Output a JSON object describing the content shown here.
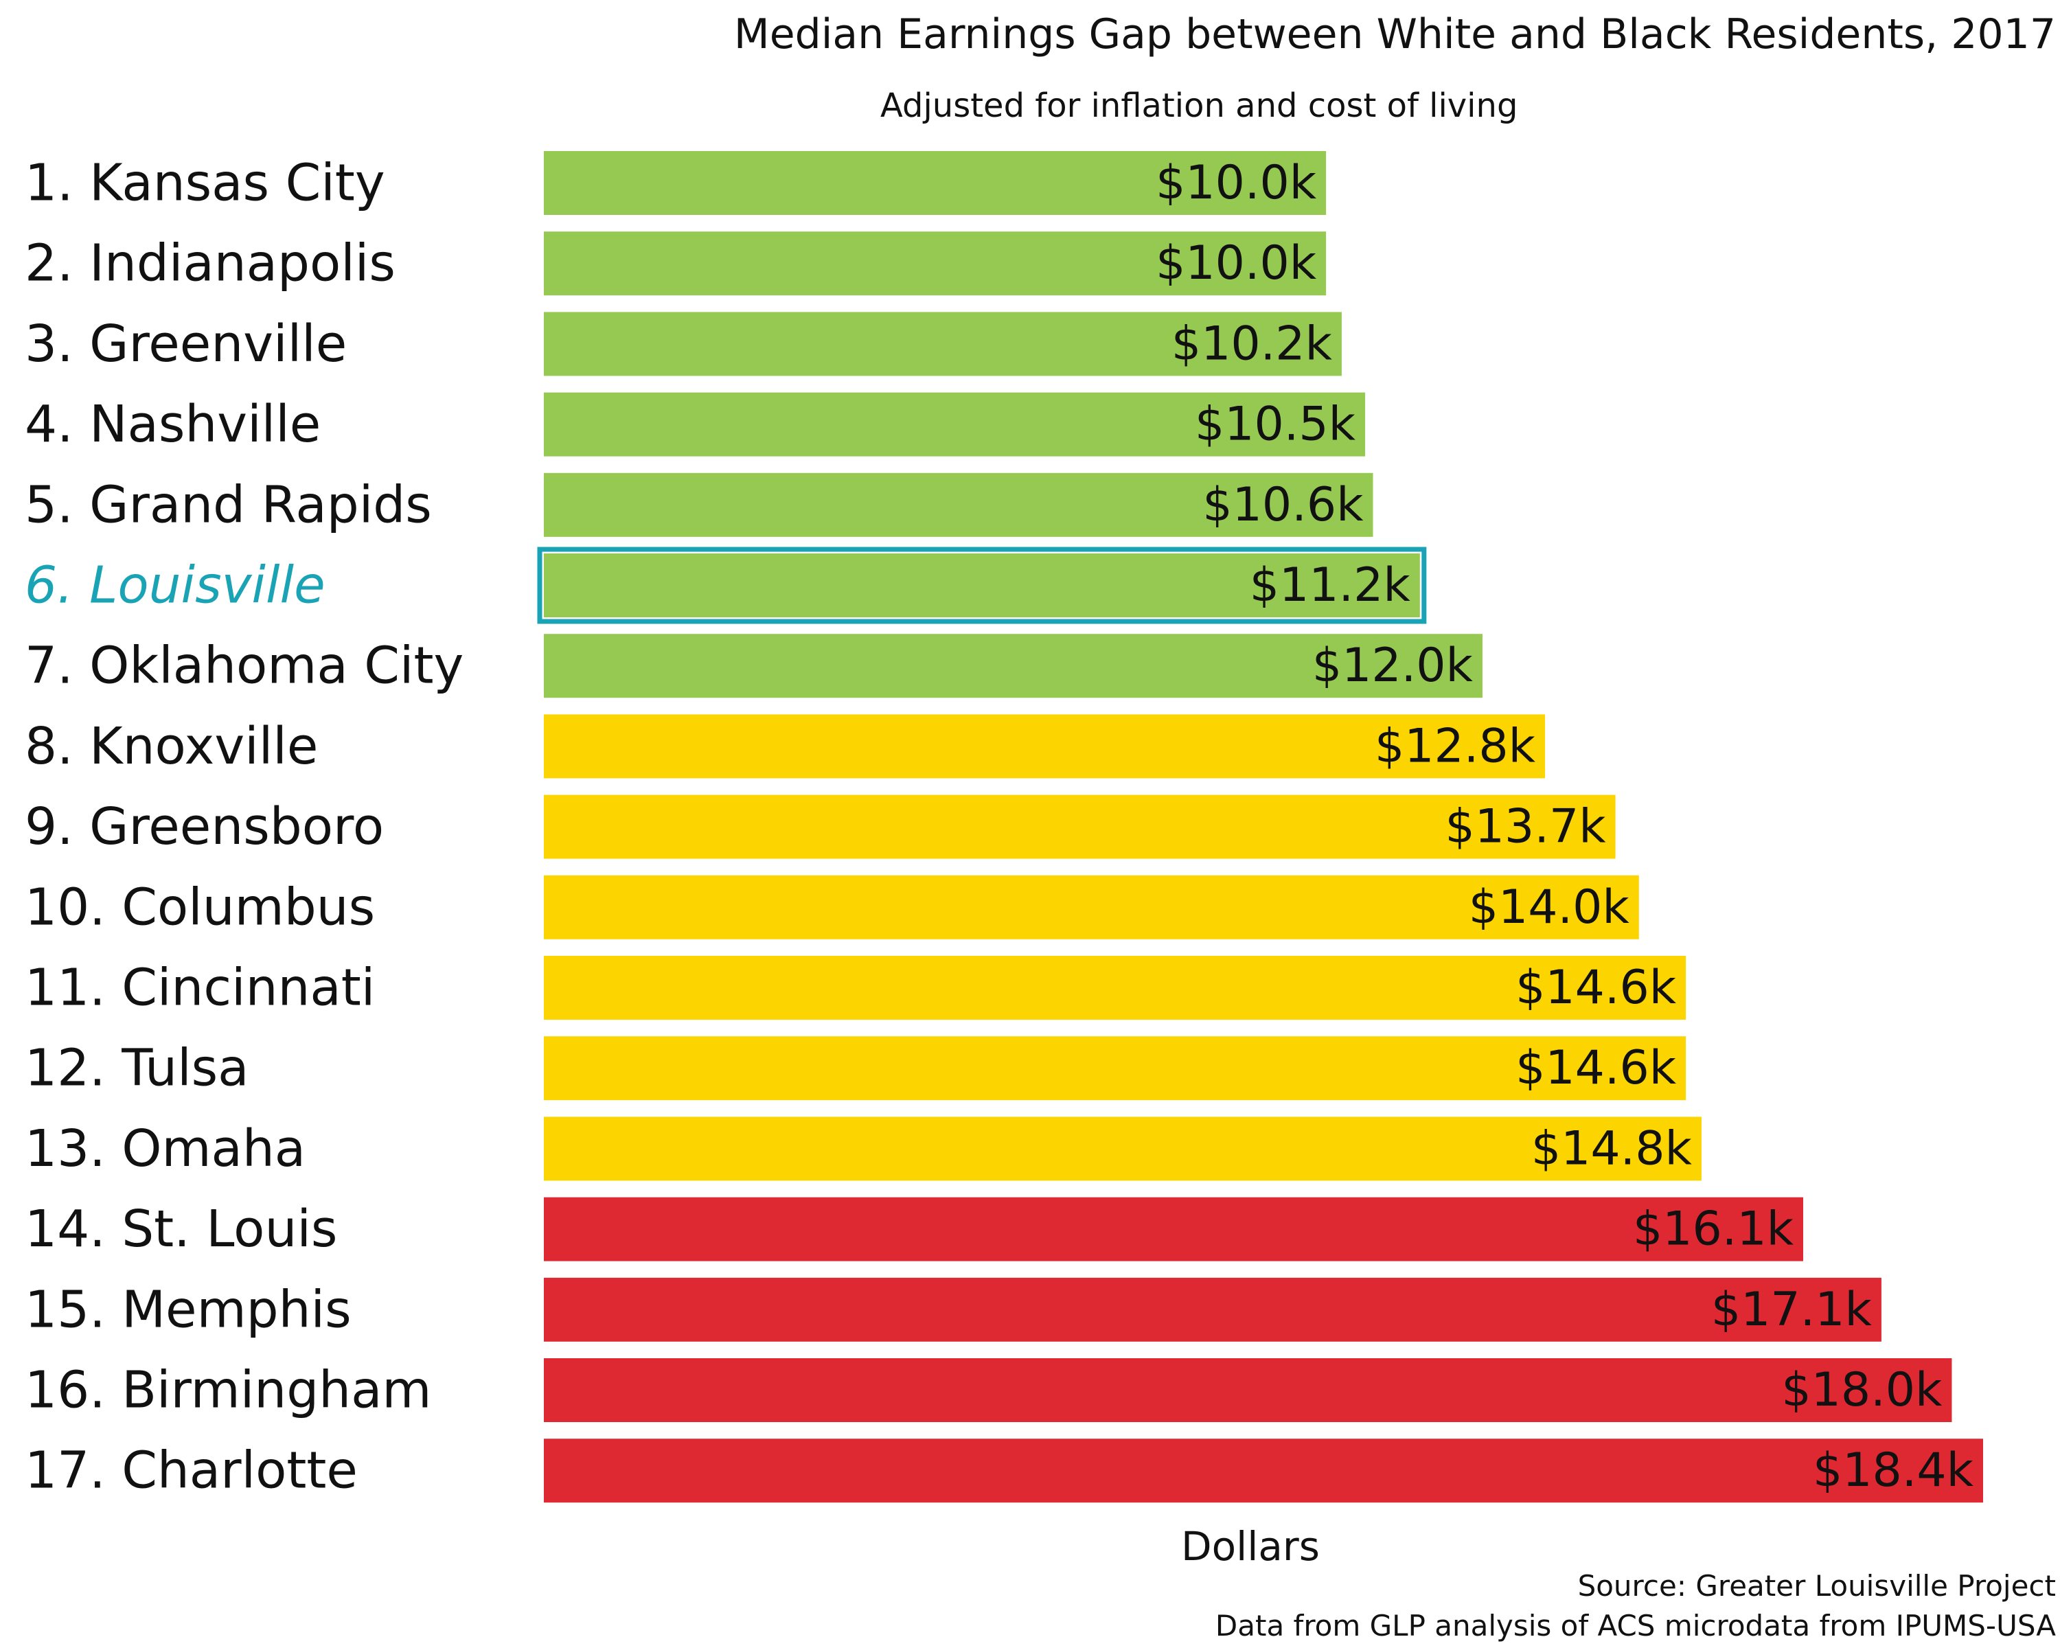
{
  "chart_data": {
    "type": "bar",
    "orientation": "horizontal",
    "title": "Median Earnings Gap between White and Black Residents, 2017",
    "subtitle": "Adjusted for inflation and cost of living",
    "xlabel": "Dollars",
    "ylabel": "",
    "xlim": [
      0,
      18.4
    ],
    "grid": false,
    "categories": [
      "1. Kansas City",
      "2. Indianapolis",
      "3. Greenville",
      "4. Nashville",
      "5. Grand Rapids",
      "6. Louisville",
      "7. Oklahoma City",
      "8. Knoxville",
      "9. Greensboro",
      "10. Columbus",
      "11. Cincinnati",
      "12. Tulsa",
      "13. Omaha",
      "14. St. Louis",
      "15. Memphis",
      "16. Birmingham",
      "17. Charlotte"
    ],
    "values": [
      10.0,
      10.0,
      10.2,
      10.5,
      10.6,
      11.2,
      12.0,
      12.8,
      13.7,
      14.0,
      14.6,
      14.6,
      14.8,
      16.1,
      17.1,
      18.0,
      18.4
    ],
    "value_labels": [
      "$10.0k",
      "$10.0k",
      "$10.2k",
      "$10.5k",
      "$10.6k",
      "$11.2k",
      "$12.0k",
      "$12.8k",
      "$13.7k",
      "$14.0k",
      "$14.6k",
      "$14.6k",
      "$14.8k",
      "$16.1k",
      "$17.1k",
      "$18.0k",
      "$18.4k"
    ],
    "tiers": [
      "green",
      "green",
      "green",
      "green",
      "green",
      "green",
      "green",
      "yellow",
      "yellow",
      "yellow",
      "yellow",
      "yellow",
      "yellow",
      "red",
      "red",
      "red",
      "red"
    ],
    "colors": {
      "green": "#96c951",
      "yellow": "#fcd500",
      "red": "#de2832",
      "highlight": "#1aa3b5"
    },
    "highlight_category": "6. Louisville",
    "source": "Source: Greater Louisville Project",
    "note": "Data from GLP analysis of ACS microdata from IPUMS-USA"
  }
}
